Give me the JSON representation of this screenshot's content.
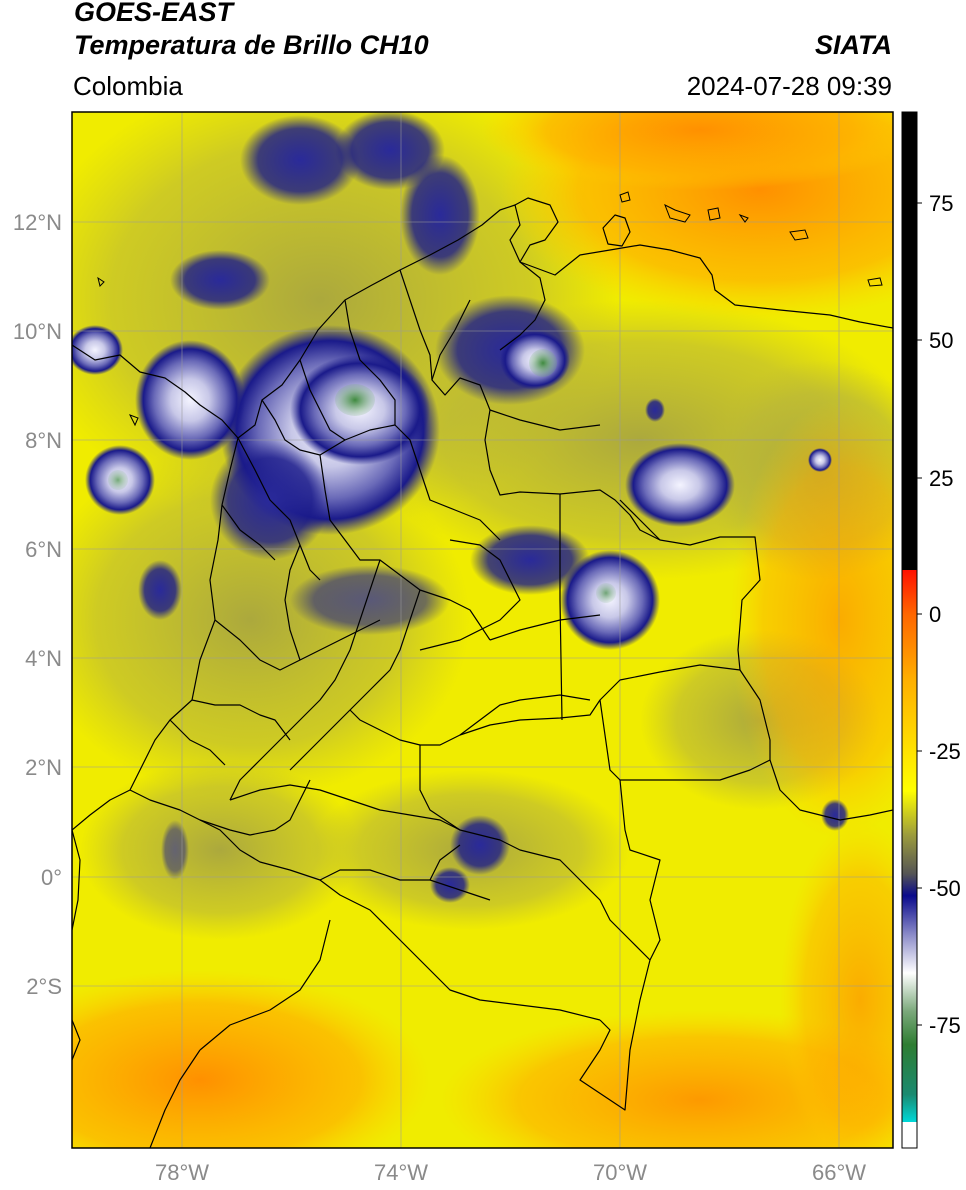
{
  "header": {
    "title_line1": "GOES-EAST",
    "title_line2": "Temperatura de Brillo CH10",
    "region": "Colombia",
    "organization": "SIATA",
    "datetime": "2024-07-28 09:39"
  },
  "axes": {
    "lat_ticks": [
      "12°N",
      "10°N",
      "8°N",
      "6°N",
      "4°N",
      "2°N",
      "0°",
      "2°S"
    ],
    "lon_ticks": [
      "78°W",
      "74°W",
      "70°W",
      "66°W"
    ]
  },
  "colorbar": {
    "ticks": [
      "75",
      "50",
      "25",
      "0",
      "-25",
      "-50",
      "-75"
    ],
    "colors": {
      "warm": "#ff0000",
      "orange": "#ff9900",
      "yellow": "#ffff00",
      "olive": "#9c9c3c",
      "navy": "#0a0a8c",
      "white": "#ffffff",
      "green": "#2e7d32",
      "cyan": "#00e5e5",
      "above_range": "#000000"
    }
  },
  "map_colors": {
    "yellow": "#f2f000",
    "olive": "#b8b53a",
    "orange": "#ff9a00",
    "cloud_navy": "#1a1a8a",
    "cloud_white": "#e8e8f4",
    "cloud_green": "#4a8f4a",
    "border": "#000000",
    "grid": "#9a9a9a"
  }
}
